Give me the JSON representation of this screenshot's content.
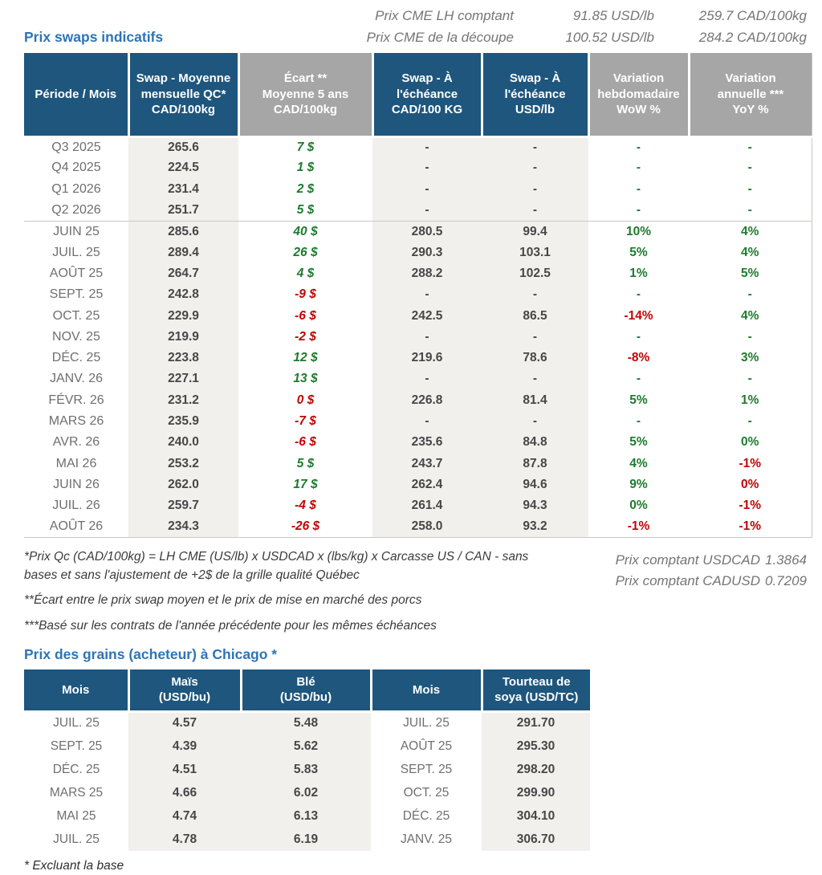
{
  "colors": {
    "header_blue": "#1e567e",
    "header_gray": "#a6a6a6",
    "accent_blue": "#2e74b5",
    "positive_green": "#1e7b2e",
    "negative_red": "#c00505",
    "shaded_column": "#f1f0ed"
  },
  "top": {
    "lines": [
      {
        "label": "Prix CME LH comptant",
        "usd": "91.85 USD/lb",
        "cad": "259.7 CAD/100kg"
      },
      {
        "label": "Prix CME de la découpe",
        "usd": "100.52 USD/lb",
        "cad": "284.2 CAD/100kg"
      }
    ]
  },
  "swap_table": {
    "title": "Prix swaps indicatifs",
    "columns": [
      {
        "label": "Période / Mois",
        "style": "blue"
      },
      {
        "label": "Swap - Moyenne\nmensuelle QC*\nCAD/100kg",
        "style": "blue"
      },
      {
        "label": "Écart **\nMoyenne 5 ans\nCAD/100kg",
        "style": "gray"
      },
      {
        "label": "Swap - À\nl'échéance\nCAD/100 KG",
        "style": "blue"
      },
      {
        "label": "Swap - À\nl'échéance\nUSD/lb",
        "style": "blue"
      },
      {
        "label": "Variation\nhebdomadaire\nWoW %",
        "style": "gray"
      },
      {
        "label": "Variation\nannuelle ***\nYoY %",
        "style": "gray"
      }
    ],
    "rows": [
      {
        "period": "Q3 2025",
        "swap_avg": "265.6",
        "ecart": "7 $",
        "ecart_color": "green",
        "swap_mat_cad": "-",
        "swap_mat_usd": "-",
        "wow": "-",
        "wow_color": "green",
        "yoy": "-",
        "yoy_color": "green"
      },
      {
        "period": "Q4 2025",
        "swap_avg": "224.5",
        "ecart": "1 $",
        "ecart_color": "green",
        "swap_mat_cad": "-",
        "swap_mat_usd": "-",
        "wow": "-",
        "wow_color": "green",
        "yoy": "-",
        "yoy_color": "green"
      },
      {
        "period": "Q1 2026",
        "swap_avg": "231.4",
        "ecart": "2 $",
        "ecart_color": "green",
        "swap_mat_cad": "-",
        "swap_mat_usd": "-",
        "wow": "-",
        "wow_color": "green",
        "yoy": "-",
        "yoy_color": "green"
      },
      {
        "period": "Q2 2026",
        "swap_avg": "251.7",
        "ecart": "5 $",
        "ecart_color": "green",
        "swap_mat_cad": "-",
        "swap_mat_usd": "-",
        "wow": "-",
        "wow_color": "green",
        "yoy": "-",
        "yoy_color": "green"
      },
      {
        "period": "JUIN 25",
        "swap_avg": "285.6",
        "ecart": "40 $",
        "ecart_color": "green",
        "swap_mat_cad": "280.5",
        "swap_mat_usd": "99.4",
        "wow": "10%",
        "wow_color": "green",
        "yoy": "4%",
        "yoy_color": "green",
        "separator_above": true
      },
      {
        "period": "JUIL. 25",
        "swap_avg": "289.4",
        "ecart": "26 $",
        "ecart_color": "green",
        "swap_mat_cad": "290.3",
        "swap_mat_usd": "103.1",
        "wow": "5%",
        "wow_color": "green",
        "yoy": "4%",
        "yoy_color": "green"
      },
      {
        "period": "AOÛT 25",
        "swap_avg": "264.7",
        "ecart": "4 $",
        "ecart_color": "green",
        "swap_mat_cad": "288.2",
        "swap_mat_usd": "102.5",
        "wow": "1%",
        "wow_color": "green",
        "yoy": "5%",
        "yoy_color": "green"
      },
      {
        "period": "SEPT. 25",
        "swap_avg": "242.8",
        "ecart": "-9 $",
        "ecart_color": "red",
        "swap_mat_cad": "-",
        "swap_mat_usd": "-",
        "wow": "-",
        "wow_color": "green",
        "yoy": "-",
        "yoy_color": "green"
      },
      {
        "period": "OCT. 25",
        "swap_avg": "229.9",
        "ecart": "-6 $",
        "ecart_color": "red",
        "swap_mat_cad": "242.5",
        "swap_mat_usd": "86.5",
        "wow": "-14%",
        "wow_color": "red",
        "yoy": "4%",
        "yoy_color": "green"
      },
      {
        "period": "NOV. 25",
        "swap_avg": "219.9",
        "ecart": "-2 $",
        "ecart_color": "red",
        "swap_mat_cad": "-",
        "swap_mat_usd": "-",
        "wow": "-",
        "wow_color": "green",
        "yoy": "-",
        "yoy_color": "green"
      },
      {
        "period": "DÉC. 25",
        "swap_avg": "223.8",
        "ecart": "12 $",
        "ecart_color": "green",
        "swap_mat_cad": "219.6",
        "swap_mat_usd": "78.6",
        "wow": "-8%",
        "wow_color": "red",
        "yoy": "3%",
        "yoy_color": "green"
      },
      {
        "period": "JANV. 26",
        "swap_avg": "227.1",
        "ecart": "13 $",
        "ecart_color": "green",
        "swap_mat_cad": "-",
        "swap_mat_usd": "-",
        "wow": "-",
        "wow_color": "green",
        "yoy": "-",
        "yoy_color": "green"
      },
      {
        "period": "FÉVR. 26",
        "swap_avg": "231.2",
        "ecart": "0 $",
        "ecart_color": "red",
        "swap_mat_cad": "226.8",
        "swap_mat_usd": "81.4",
        "wow": "5%",
        "wow_color": "green",
        "yoy": "1%",
        "yoy_color": "green"
      },
      {
        "period": "MARS 26",
        "swap_avg": "235.9",
        "ecart": "-7 $",
        "ecart_color": "red",
        "swap_mat_cad": "-",
        "swap_mat_usd": "-",
        "wow": "-",
        "wow_color": "green",
        "yoy": "-",
        "yoy_color": "green"
      },
      {
        "period": "AVR. 26",
        "swap_avg": "240.0",
        "ecart": "-6 $",
        "ecart_color": "red",
        "swap_mat_cad": "235.6",
        "swap_mat_usd": "84.8",
        "wow": "5%",
        "wow_color": "green",
        "yoy": "0%",
        "yoy_color": "green"
      },
      {
        "period": "MAI 26",
        "swap_avg": "253.2",
        "ecart": "5 $",
        "ecart_color": "green",
        "swap_mat_cad": "243.7",
        "swap_mat_usd": "87.8",
        "wow": "4%",
        "wow_color": "green",
        "yoy": "-1%",
        "yoy_color": "red"
      },
      {
        "period": "JUIN 26",
        "swap_avg": "262.0",
        "ecart": "17 $",
        "ecart_color": "green",
        "swap_mat_cad": "262.4",
        "swap_mat_usd": "94.6",
        "wow": "9%",
        "wow_color": "green",
        "yoy": "0%",
        "yoy_color": "red"
      },
      {
        "period": "JUIL. 26",
        "swap_avg": "259.7",
        "ecart": "-4 $",
        "ecart_color": "red",
        "swap_mat_cad": "261.4",
        "swap_mat_usd": "94.3",
        "wow": "0%",
        "wow_color": "green",
        "yoy": "-1%",
        "yoy_color": "red"
      },
      {
        "period": "AOÛT 26",
        "swap_avg": "234.3",
        "ecart": "-26 $",
        "ecart_color": "red",
        "swap_mat_cad": "258.0",
        "swap_mat_usd": "93.2",
        "wow": "-1%",
        "wow_color": "red",
        "yoy": "-1%",
        "yoy_color": "red"
      }
    ]
  },
  "footnotes": {
    "left": [
      "*Prix Qc (CAD/100kg) = LH CME (US/lb) x USDCAD x (lbs/kg) x Carcasse US / CAN - sans bases et sans l'ajustement de +2$ de la grille qualité Québec",
      "**Écart entre le prix swap moyen et le prix de mise en marché des porcs",
      "***Basé sur les contrats de l'année précédente pour les mêmes échéances"
    ],
    "right": [
      {
        "label": "Prix comptant USDCAD",
        "value": "1.3864"
      },
      {
        "label": "Prix comptant CADUSD",
        "value": "0.7209"
      }
    ]
  },
  "grain_table": {
    "title": "Prix des grains (acheteur) à Chicago *",
    "columns": [
      {
        "label": "Mois"
      },
      {
        "label": "Maïs\n(USD/bu)"
      },
      {
        "label": "Blé\n(USD/bu)"
      },
      {
        "label": "Mois"
      },
      {
        "label": "Tourteau de\nsoya (USD/TC)"
      }
    ],
    "rows": [
      {
        "month1": "JUIL. 25",
        "corn": "4.57",
        "wheat": "5.48",
        "month2": "JUIL. 25",
        "soymeal": "291.70"
      },
      {
        "month1": "SEPT. 25",
        "corn": "4.39",
        "wheat": "5.62",
        "month2": "AOÛT 25",
        "soymeal": "295.30"
      },
      {
        "month1": "DÉC. 25",
        "corn": "4.51",
        "wheat": "5.83",
        "month2": "SEPT. 25",
        "soymeal": "298.20"
      },
      {
        "month1": "MARS 25",
        "corn": "4.66",
        "wheat": "6.02",
        "month2": "OCT. 25",
        "soymeal": "299.90"
      },
      {
        "month1": "MAI 25",
        "corn": "4.74",
        "wheat": "6.13",
        "month2": "DÉC. 25",
        "soymeal": "304.10"
      },
      {
        "month1": "JUIL. 25",
        "corn": "4.78",
        "wheat": "6.19",
        "month2": "JANV. 25",
        "soymeal": "306.70"
      }
    ],
    "footnote": "* Excluant la base"
  }
}
